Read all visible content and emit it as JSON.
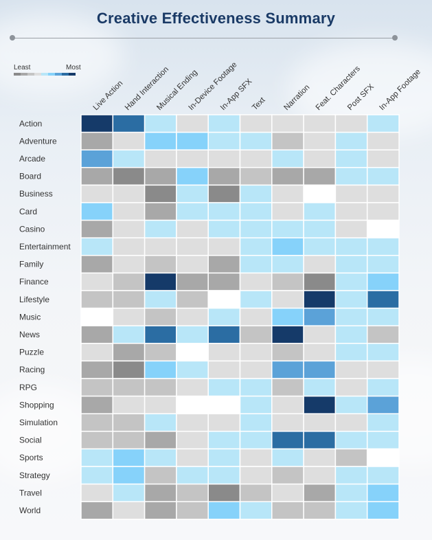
{
  "title": "Creative Effectiveness Summary",
  "legend": {
    "least_label": "Least",
    "most_label": "Most",
    "scale_colors": [
      "#8a8a8a",
      "#a8a8a8",
      "#c4c4c4",
      "#dedede",
      "#b8e6f8",
      "#86d2fa",
      "#5ba2d8",
      "#2b6da3",
      "#153a69"
    ]
  },
  "chart_data": {
    "type": "heatmap",
    "title": "Creative Effectiveness Summary",
    "scale": "1 = least effective (dark gray) … 9 = most effective (navy)",
    "columns": [
      "Live Action",
      "Hand Interaction",
      "Musical Ending",
      "In-Device Footage",
      "In-App SFX",
      "Text",
      "Narration",
      "Feat. Characters",
      "Post SFX",
      "In-App Footage"
    ],
    "rows": [
      "Action",
      "Adventure",
      "Arcade",
      "Board",
      "Business",
      "Card",
      "Casino",
      "Entertainment",
      "Family",
      "Finance",
      "Lifestyle",
      "Music",
      "News",
      "Puzzle",
      "Racing",
      "RPG",
      "Shopping",
      "Simulation",
      "Social",
      "Sports",
      "Strategy",
      "Travel",
      "World"
    ],
    "values": [
      [
        9,
        8,
        5,
        4,
        5,
        4,
        4,
        4,
        4,
        5
      ],
      [
        2,
        4,
        6,
        6,
        5,
        5,
        3,
        4,
        5,
        4
      ],
      [
        7,
        5,
        4,
        4,
        4,
        4,
        5,
        4,
        5,
        4
      ],
      [
        2,
        1,
        2,
        6,
        2,
        3,
        2,
        2,
        5,
        5
      ],
      [
        4,
        4,
        1,
        5,
        1,
        5,
        4,
        0,
        4,
        4
      ],
      [
        6,
        4,
        2,
        5,
        5,
        5,
        4,
        5,
        4,
        4
      ],
      [
        2,
        4,
        5,
        4,
        5,
        5,
        5,
        5,
        4,
        0
      ],
      [
        5,
        4,
        4,
        4,
        4,
        5,
        6,
        5,
        5,
        5
      ],
      [
        2,
        4,
        3,
        4,
        2,
        5,
        5,
        4,
        5,
        5
      ],
      [
        4,
        3,
        9,
        2,
        2,
        4,
        3,
        1,
        5,
        6
      ],
      [
        3,
        3,
        5,
        3,
        0,
        5,
        4,
        9,
        5,
        8
      ],
      [
        0,
        4,
        3,
        4,
        5,
        4,
        6,
        7,
        5,
        5
      ],
      [
        2,
        5,
        8,
        5,
        8,
        3,
        9,
        4,
        5,
        3
      ],
      [
        4,
        2,
        3,
        0,
        4,
        4,
        3,
        4,
        5,
        5
      ],
      [
        2,
        1,
        6,
        5,
        4,
        4,
        7,
        7,
        4,
        4
      ],
      [
        3,
        3,
        3,
        4,
        5,
        5,
        3,
        5,
        4,
        5
      ],
      [
        2,
        4,
        4,
        0,
        0,
        5,
        4,
        9,
        5,
        7
      ],
      [
        3,
        3,
        5,
        4,
        4,
        5,
        4,
        4,
        4,
        5
      ],
      [
        3,
        3,
        2,
        4,
        5,
        5,
        8,
        8,
        5,
        5
      ],
      [
        5,
        6,
        5,
        4,
        5,
        4,
        5,
        4,
        3,
        0
      ],
      [
        5,
        6,
        3,
        5,
        5,
        4,
        3,
        4,
        5,
        5
      ],
      [
        4,
        5,
        2,
        3,
        1,
        3,
        4,
        2,
        5,
        6
      ],
      [
        2,
        4,
        2,
        3,
        6,
        5,
        3,
        3,
        5,
        6
      ]
    ]
  }
}
